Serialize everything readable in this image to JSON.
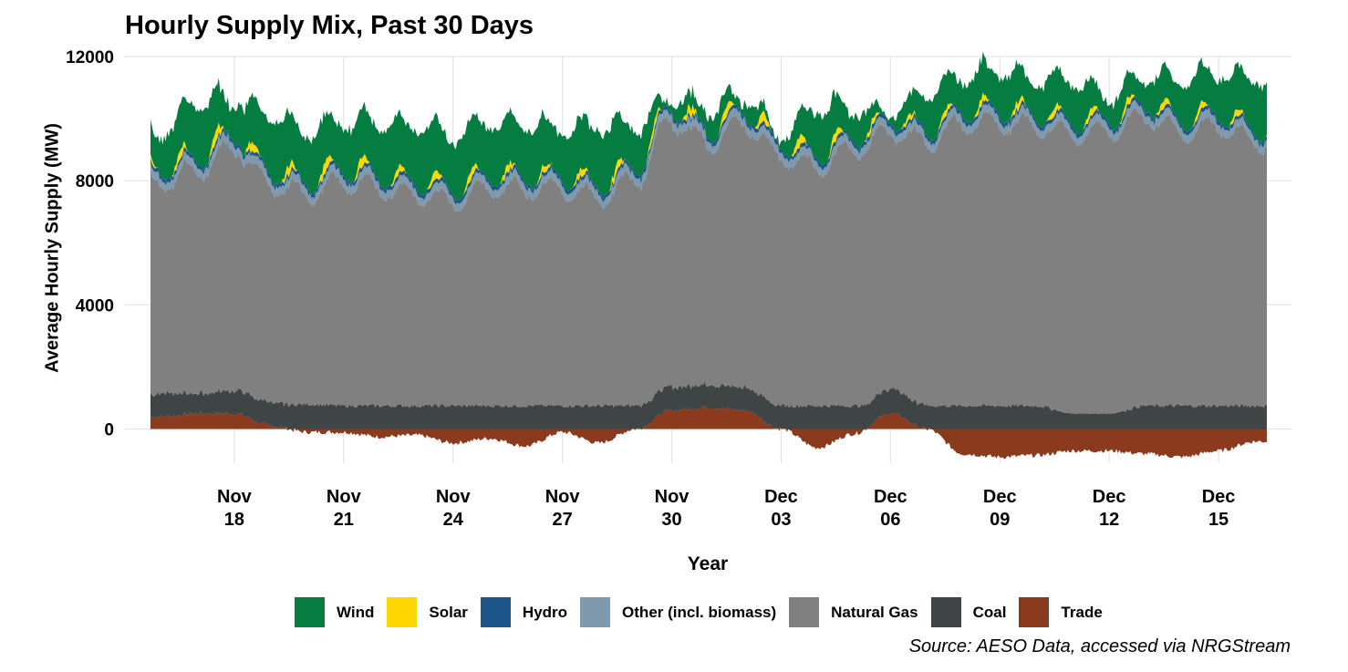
{
  "chart_data": {
    "type": "area",
    "stacked": true,
    "title": "Hourly Supply Mix, Past 30 Days",
    "xlabel": "Year",
    "ylabel": "Average Hourly Supply (MW)",
    "source": "Source: AESO Data, accessed via NRGStream",
    "x_range": [
      "2024-11-15",
      "2024-12-17"
    ],
    "ylim": [
      -1100,
      12000
    ],
    "yticks": [
      "0",
      "4000",
      "8000",
      "12000"
    ],
    "xticks": [
      {
        "date": "2024-11-18",
        "month": "Nov",
        "day": "18"
      },
      {
        "date": "2024-11-21",
        "month": "Nov",
        "day": "21"
      },
      {
        "date": "2024-11-24",
        "month": "Nov",
        "day": "24"
      },
      {
        "date": "2024-11-27",
        "month": "Nov",
        "day": "27"
      },
      {
        "date": "2024-11-30",
        "month": "Nov",
        "day": "30"
      },
      {
        "date": "2024-12-03",
        "month": "Dec",
        "day": "03"
      },
      {
        "date": "2024-12-06",
        "month": "Dec",
        "day": "06"
      },
      {
        "date": "2024-12-09",
        "month": "Dec",
        "day": "09"
      },
      {
        "date": "2024-12-12",
        "month": "Dec",
        "day": "12"
      },
      {
        "date": "2024-12-15",
        "month": "Dec",
        "day": "15"
      }
    ],
    "grid": true,
    "legend_position": "bottom",
    "x_dates": [
      "2024-11-16",
      "2024-11-17",
      "2024-11-18",
      "2024-11-19",
      "2024-11-20",
      "2024-11-21",
      "2024-11-22",
      "2024-11-23",
      "2024-11-24",
      "2024-11-25",
      "2024-11-26",
      "2024-11-27",
      "2024-11-28",
      "2024-11-29",
      "2024-11-30",
      "2024-12-01",
      "2024-12-02",
      "2024-12-03",
      "2024-12-04",
      "2024-12-05",
      "2024-12-06",
      "2024-12-07",
      "2024-12-08",
      "2024-12-09",
      "2024-12-10",
      "2024-12-11",
      "2024-12-12",
      "2024-12-13",
      "2024-12-14",
      "2024-12-15",
      "2024-12-16"
    ],
    "series": [
      {
        "name": "Trade",
        "color": "#8B3A1E",
        "values": [
          400,
          500,
          500,
          100,
          -100,
          -100,
          -250,
          -200,
          -450,
          -300,
          -550,
          -100,
          -450,
          0,
          600,
          700,
          600,
          0,
          -600,
          -150,
          500,
          0,
          -800,
          -900,
          -850,
          -700,
          -700,
          -800,
          -900,
          -700,
          -400
        ]
      },
      {
        "name": "Coal",
        "color": "#3F4444",
        "values": [
          750,
          650,
          750,
          750,
          800,
          750,
          750,
          750,
          750,
          750,
          750,
          750,
          750,
          750,
          750,
          750,
          750,
          750,
          750,
          750,
          800,
          750,
          750,
          750,
          750,
          500,
          500,
          750,
          750,
          750,
          750
        ]
      },
      {
        "name": "Natural Gas",
        "color": "#808080",
        "values": [
          6800,
          7200,
          7800,
          7000,
          6800,
          7200,
          7000,
          6800,
          6600,
          7000,
          7000,
          7000,
          6700,
          7300,
          8600,
          7800,
          8500,
          8000,
          7700,
          8300,
          8300,
          8500,
          9100,
          9100,
          9000,
          9000,
          9100,
          9300,
          8800,
          9000,
          8500
        ]
      },
      {
        "name": "Other (incl. biomass)",
        "color": "#7F9AAF",
        "values": [
          250,
          250,
          250,
          250,
          250,
          250,
          250,
          250,
          250,
          250,
          250,
          250,
          250,
          250,
          250,
          250,
          250,
          250,
          250,
          250,
          250,
          250,
          250,
          250,
          250,
          250,
          250,
          250,
          250,
          250,
          250
        ]
      },
      {
        "name": "Hydro",
        "color": "#1C5488",
        "values": [
          120,
          120,
          120,
          120,
          120,
          120,
          120,
          120,
          120,
          120,
          120,
          120,
          120,
          120,
          120,
          120,
          120,
          120,
          120,
          120,
          120,
          120,
          120,
          120,
          120,
          120,
          120,
          120,
          120,
          120,
          120
        ]
      },
      {
        "name": "Solar",
        "color": "#FFD700",
        "values": [
          100,
          250,
          200,
          150,
          200,
          250,
          150,
          150,
          200,
          150,
          150,
          100,
          200,
          150,
          150,
          200,
          200,
          200,
          200,
          150,
          100,
          120,
          150,
          150,
          150,
          150,
          150,
          150,
          150,
          150,
          120
        ]
      },
      {
        "name": "Wind",
        "color": "#067D40",
        "values": [
          1200,
          1800,
          1100,
          1800,
          1600,
          1500,
          1700,
          1800,
          1700,
          1700,
          1700,
          1500,
          1900,
          1300,
          300,
          700,
          400,
          300,
          1500,
          900,
          200,
          1200,
          1100,
          1300,
          1100,
          1300,
          700,
          900,
          1300,
          1300,
          1600
        ]
      }
    ]
  },
  "legend": [
    {
      "label": "Wind",
      "color": "#067D40"
    },
    {
      "label": "Solar",
      "color": "#FFD700"
    },
    {
      "label": "Hydro",
      "color": "#1C5488"
    },
    {
      "label": "Other (incl. biomass)",
      "color": "#7F9AAF"
    },
    {
      "label": "Natural Gas",
      "color": "#808080"
    },
    {
      "label": "Coal",
      "color": "#3F4444"
    },
    {
      "label": "Trade",
      "color": "#8B3A1E"
    }
  ]
}
